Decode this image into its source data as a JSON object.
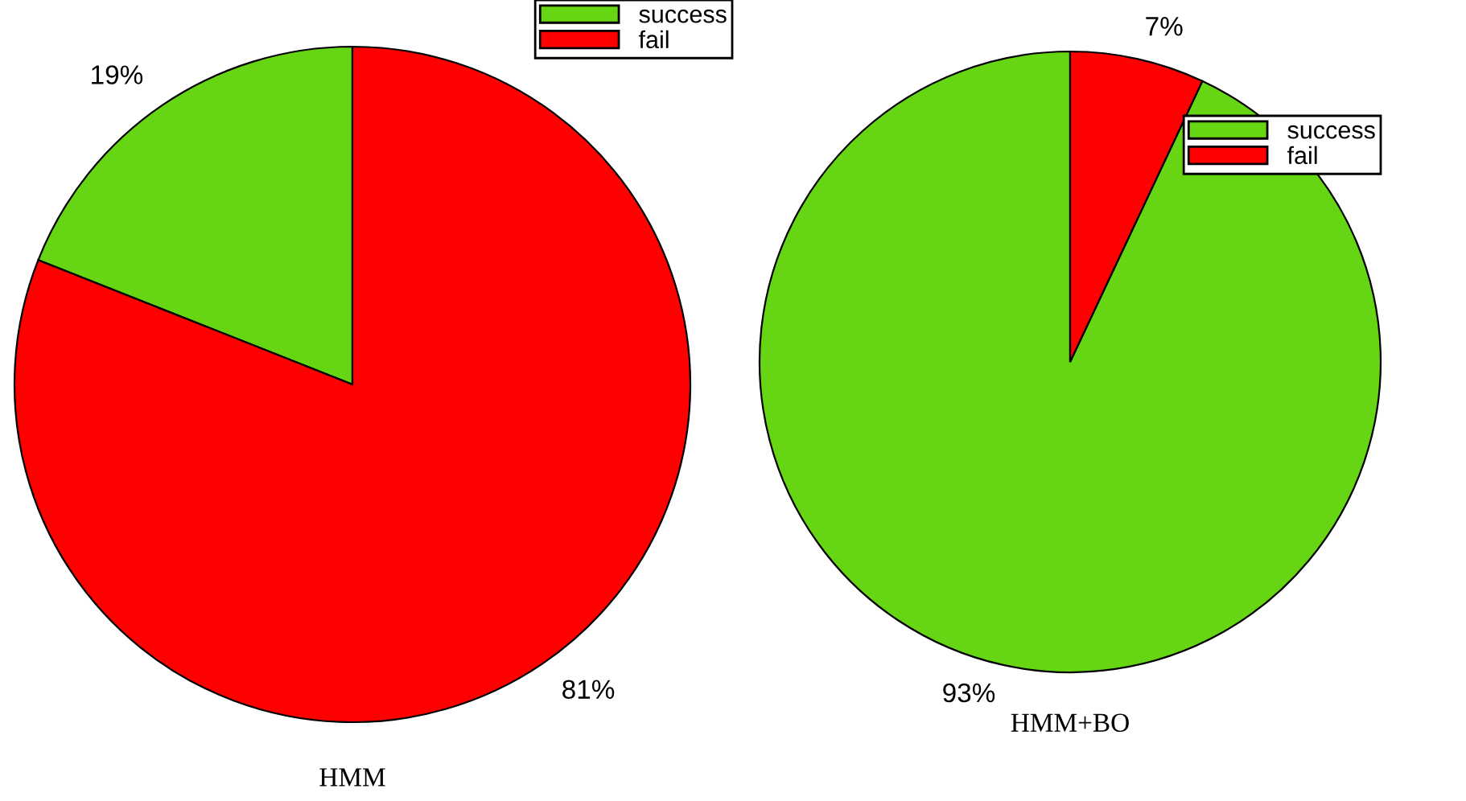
{
  "chart_data": [
    {
      "type": "pie",
      "title": "HMM",
      "categories": [
        "success",
        "fail"
      ],
      "values": [
        19,
        81
      ],
      "colors": [
        "#66d614",
        "#ff0000"
      ],
      "value_labels": [
        "19%",
        "81%"
      ],
      "legend": "top right"
    },
    {
      "type": "pie",
      "title": "HMM+BO",
      "categories": [
        "success",
        "fail"
      ],
      "values": [
        93,
        7
      ],
      "colors": [
        "#66d614",
        "#ff0000"
      ],
      "value_labels": [
        "93%",
        "7%"
      ],
      "legend": "top right"
    }
  ]
}
